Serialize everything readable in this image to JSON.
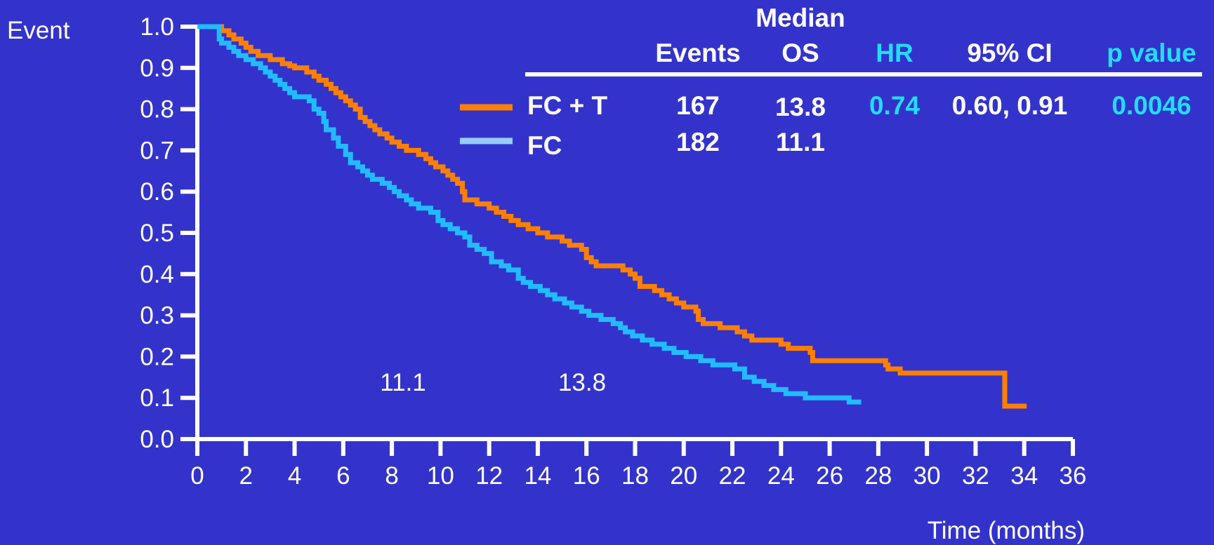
{
  "colors": {
    "background": "#3333cc",
    "axis": "#ffffff",
    "text": "#ffffff",
    "accent": "#22ddff",
    "fc_t": "#ff8000",
    "fc": "#22bbff",
    "fc_legend": "#99ccff"
  },
  "table": {
    "header_median": "Median",
    "header_events": "Events",
    "header_os": "OS",
    "header_hr": "HR",
    "header_ci": "95% CI",
    "header_p": "p value",
    "rows": [
      {
        "label": "FC + T",
        "events": "167",
        "os": "13.8",
        "hr": "0.74",
        "ci": "0.60, 0.91",
        "p": "0.0046"
      },
      {
        "label": "FC",
        "events": "182",
        "os": "11.1",
        "hr": "",
        "ci": "",
        "p": ""
      }
    ]
  },
  "chart_data": {
    "type": "line",
    "step": true,
    "ylabel": "Event",
    "xlabel": "Time (months)",
    "xlim": [
      0,
      36
    ],
    "ylim": [
      0,
      1.0
    ],
    "x_ticks": [
      "0",
      "2",
      "4",
      "6",
      "8",
      "10",
      "12",
      "14",
      "16",
      "18",
      "20",
      "22",
      "24",
      "26",
      "28",
      "30",
      "32",
      "34",
      "36"
    ],
    "y_ticks": [
      "0.0",
      "0.1",
      "0.2",
      "0.3",
      "0.4",
      "0.5",
      "0.6",
      "0.7",
      "0.8",
      "0.9",
      "1.0"
    ],
    "grid": false,
    "annotations": [
      {
        "text": "11.1",
        "x": 8.5,
        "y": 0.13
      },
      {
        "text": "13.8",
        "x": 15.7,
        "y": 0.13
      }
    ],
    "series": [
      {
        "name": "FC + T",
        "color": "#ff8000",
        "points": [
          [
            0.8,
            1.0
          ],
          [
            1.0,
            0.99
          ],
          [
            1.3,
            0.98
          ],
          [
            1.5,
            0.97
          ],
          [
            1.8,
            0.96
          ],
          [
            2.0,
            0.95
          ],
          [
            2.2,
            0.94
          ],
          [
            2.5,
            0.93
          ],
          [
            3.0,
            0.92
          ],
          [
            3.5,
            0.91
          ],
          [
            3.8,
            0.905
          ],
          [
            4.0,
            0.9
          ],
          [
            4.5,
            0.89
          ],
          [
            4.8,
            0.88
          ],
          [
            5.0,
            0.87
          ],
          [
            5.3,
            0.86
          ],
          [
            5.5,
            0.85
          ],
          [
            5.7,
            0.84
          ],
          [
            5.9,
            0.83
          ],
          [
            6.1,
            0.82
          ],
          [
            6.3,
            0.81
          ],
          [
            6.5,
            0.8
          ],
          [
            6.7,
            0.78
          ],
          [
            6.9,
            0.77
          ],
          [
            7.1,
            0.76
          ],
          [
            7.3,
            0.75
          ],
          [
            7.5,
            0.74
          ],
          [
            7.8,
            0.73
          ],
          [
            8.0,
            0.72
          ],
          [
            8.3,
            0.71
          ],
          [
            8.6,
            0.7
          ],
          [
            9.1,
            0.69
          ],
          [
            9.4,
            0.68
          ],
          [
            9.6,
            0.67
          ],
          [
            9.8,
            0.66
          ],
          [
            10.1,
            0.65
          ],
          [
            10.3,
            0.64
          ],
          [
            10.5,
            0.63
          ],
          [
            10.7,
            0.62
          ],
          [
            10.9,
            0.6
          ],
          [
            11.0,
            0.58
          ],
          [
            11.5,
            0.57
          ],
          [
            12.0,
            0.56
          ],
          [
            12.3,
            0.55
          ],
          [
            12.6,
            0.54
          ],
          [
            12.9,
            0.53
          ],
          [
            13.2,
            0.52
          ],
          [
            13.6,
            0.51
          ],
          [
            14.0,
            0.5
          ],
          [
            14.4,
            0.49
          ],
          [
            15.0,
            0.48
          ],
          [
            15.3,
            0.47
          ],
          [
            15.8,
            0.46
          ],
          [
            16.0,
            0.44
          ],
          [
            16.2,
            0.43
          ],
          [
            16.4,
            0.42
          ],
          [
            17.5,
            0.41
          ],
          [
            17.8,
            0.4
          ],
          [
            18.0,
            0.39
          ],
          [
            18.2,
            0.37
          ],
          [
            18.8,
            0.36
          ],
          [
            19.1,
            0.35
          ],
          [
            19.4,
            0.34
          ],
          [
            19.7,
            0.33
          ],
          [
            20.0,
            0.32
          ],
          [
            20.5,
            0.31
          ],
          [
            20.6,
            0.29
          ],
          [
            20.8,
            0.28
          ],
          [
            21.5,
            0.27
          ],
          [
            22.2,
            0.26
          ],
          [
            22.5,
            0.25
          ],
          [
            22.8,
            0.24
          ],
          [
            24.0,
            0.23
          ],
          [
            24.3,
            0.22
          ],
          [
            25.2,
            0.21
          ],
          [
            25.3,
            0.19
          ],
          [
            28.3,
            0.18
          ],
          [
            28.4,
            0.17
          ],
          [
            28.9,
            0.16
          ],
          [
            33.2,
            0.08
          ],
          [
            34.1,
            0.08
          ]
        ]
      },
      {
        "name": "FC",
        "color": "#22bbff",
        "points": [
          [
            0,
            1.0
          ],
          [
            0.8,
            1.0
          ],
          [
            0.9,
            0.97
          ],
          [
            1.0,
            0.96
          ],
          [
            1.3,
            0.95
          ],
          [
            1.5,
            0.94
          ],
          [
            1.7,
            0.93
          ],
          [
            2.0,
            0.92
          ],
          [
            2.3,
            0.91
          ],
          [
            2.6,
            0.9
          ],
          [
            2.8,
            0.89
          ],
          [
            3.0,
            0.88
          ],
          [
            3.2,
            0.87
          ],
          [
            3.4,
            0.86
          ],
          [
            3.6,
            0.85
          ],
          [
            3.8,
            0.84
          ],
          [
            4.0,
            0.83
          ],
          [
            4.6,
            0.82
          ],
          [
            4.8,
            0.8
          ],
          [
            5.0,
            0.79
          ],
          [
            5.2,
            0.77
          ],
          [
            5.3,
            0.75
          ],
          [
            5.6,
            0.73
          ],
          [
            5.8,
            0.71
          ],
          [
            6.1,
            0.69
          ],
          [
            6.3,
            0.67
          ],
          [
            6.6,
            0.66
          ],
          [
            6.8,
            0.65
          ],
          [
            7.0,
            0.64
          ],
          [
            7.2,
            0.63
          ],
          [
            7.6,
            0.62
          ],
          [
            7.9,
            0.61
          ],
          [
            8.1,
            0.6
          ],
          [
            8.3,
            0.59
          ],
          [
            8.6,
            0.58
          ],
          [
            8.8,
            0.57
          ],
          [
            9.1,
            0.56
          ],
          [
            9.6,
            0.55
          ],
          [
            9.9,
            0.53
          ],
          [
            10.1,
            0.52
          ],
          [
            10.4,
            0.51
          ],
          [
            10.7,
            0.5
          ],
          [
            11.0,
            0.49
          ],
          [
            11.2,
            0.47
          ],
          [
            11.5,
            0.46
          ],
          [
            11.8,
            0.45
          ],
          [
            12.1,
            0.43
          ],
          [
            12.5,
            0.42
          ],
          [
            12.8,
            0.41
          ],
          [
            13.2,
            0.39
          ],
          [
            13.4,
            0.38
          ],
          [
            13.7,
            0.37
          ],
          [
            14.1,
            0.36
          ],
          [
            14.4,
            0.35
          ],
          [
            14.7,
            0.34
          ],
          [
            15.1,
            0.33
          ],
          [
            15.4,
            0.32
          ],
          [
            15.8,
            0.31
          ],
          [
            16.1,
            0.3
          ],
          [
            16.6,
            0.29
          ],
          [
            17.1,
            0.28
          ],
          [
            17.4,
            0.27
          ],
          [
            17.6,
            0.26
          ],
          [
            17.9,
            0.25
          ],
          [
            18.3,
            0.24
          ],
          [
            18.7,
            0.23
          ],
          [
            19.2,
            0.22
          ],
          [
            19.6,
            0.21
          ],
          [
            20.1,
            0.2
          ],
          [
            20.7,
            0.19
          ],
          [
            21.2,
            0.18
          ],
          [
            22.1,
            0.17
          ],
          [
            22.5,
            0.15
          ],
          [
            22.9,
            0.14
          ],
          [
            23.3,
            0.13
          ],
          [
            23.7,
            0.12
          ],
          [
            24.2,
            0.11
          ],
          [
            25.0,
            0.1
          ],
          [
            26.8,
            0.09
          ],
          [
            27.3,
            0.09
          ]
        ]
      }
    ]
  }
}
